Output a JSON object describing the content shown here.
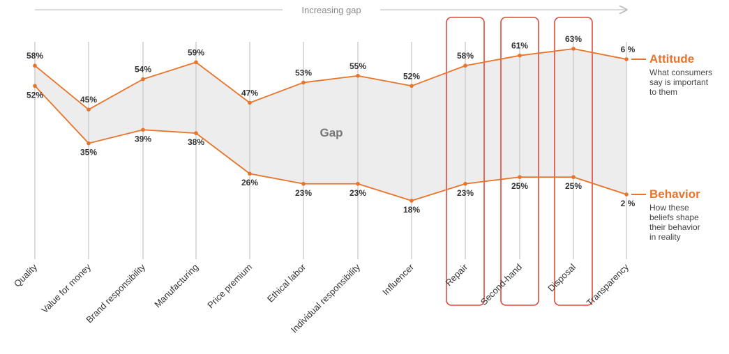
{
  "chart_data": {
    "type": "line",
    "title": "",
    "gap_arrow_label": "Increasing gap",
    "gap_label": "Gap",
    "categories": [
      "Quality",
      "Value for money",
      "Brand responsibility",
      "Manufacturing",
      "Price premium",
      "Ethical labor",
      "Individual responsibility",
      "Influencer",
      "Repair",
      "Second-hand",
      "Disposal",
      "Transparency"
    ],
    "series": [
      {
        "name": "Attitude",
        "description": [
          "What consumers",
          "say is important",
          "to them"
        ],
        "values": [
          58,
          45,
          54,
          59,
          47,
          53,
          55,
          52,
          58,
          61,
          63,
          6
        ],
        "labels": [
          "58%",
          "45%",
          "54%",
          "59%",
          "47%",
          "53%",
          "55%",
          "52%",
          "58%",
          "61%",
          "63%",
          "6 %"
        ]
      },
      {
        "name": "Behavior",
        "description": [
          "How these",
          "beliefs shape",
          "their behavior",
          "in reality"
        ],
        "values": [
          52,
          35,
          39,
          38,
          26,
          23,
          23,
          18,
          23,
          25,
          25,
          2
        ],
        "labels": [
          "52%",
          "35%",
          "39%",
          "38%",
          "26%",
          "23%",
          "23%",
          "18%",
          "23%",
          "25%",
          "25%",
          "2 %"
        ]
      }
    ],
    "highlighted_categories": [
      "Repair",
      "Second-hand",
      "Disposal"
    ],
    "colors": {
      "line": "#e8742a",
      "gap_fill": "#ededed",
      "axis": "#cfcfcf",
      "highlight": "#e0473a",
      "text": "#333333"
    }
  }
}
